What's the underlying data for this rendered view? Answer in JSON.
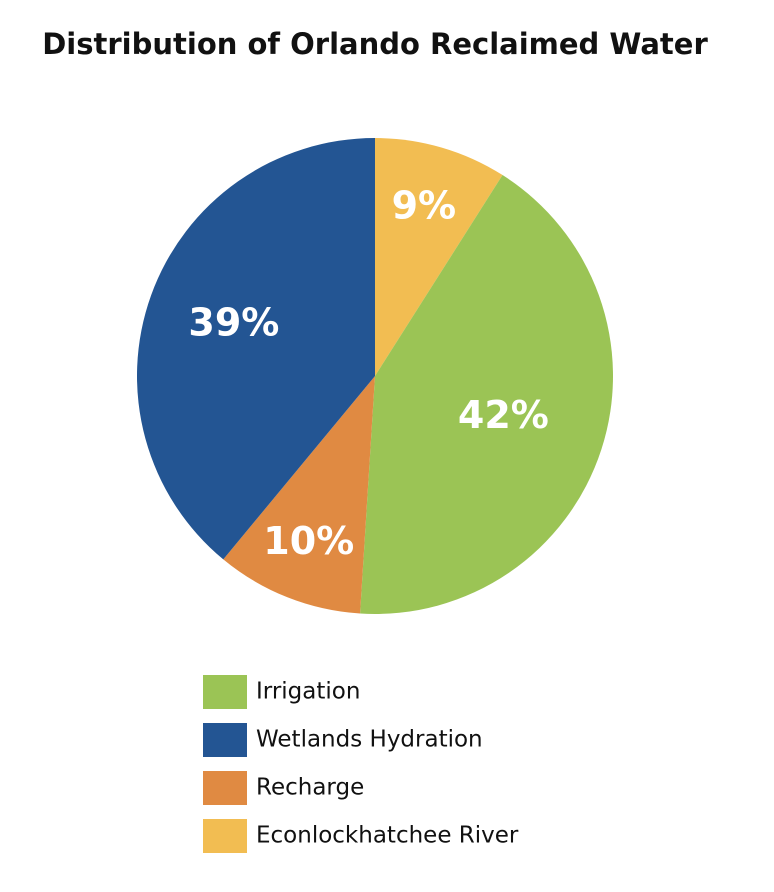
{
  "chart_data": {
    "type": "pie",
    "title": "Distribution of Orlando Reclaimed Water",
    "categories": [
      "Irrigation",
      "Wetlands Hydration",
      "Recharge",
      "Econlockhatchee River"
    ],
    "values": [
      42,
      39,
      10,
      9
    ],
    "value_labels": [
      "42%",
      "39%",
      "10%",
      "9%"
    ],
    "colors": [
      "#9bc455",
      "#235593",
      "#e08a42",
      "#f2bd52"
    ]
  }
}
